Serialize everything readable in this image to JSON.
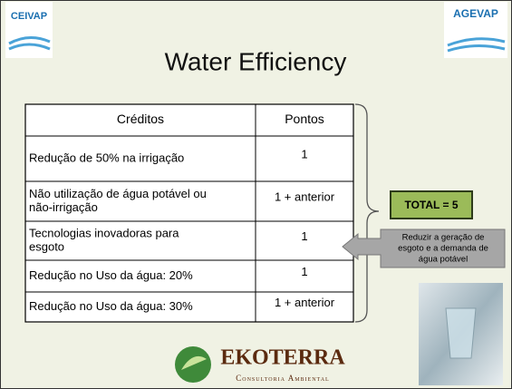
{
  "header": {
    "title": "Water Efficiency",
    "logo_left": "CEIVAP",
    "logo_right": "AGEVAP"
  },
  "table": {
    "columns": [
      "Créditos",
      "Pontos"
    ],
    "rows": [
      [
        [
          "Redução de 50% na irrigação"
        ],
        "1"
      ],
      [
        [
          "Não utilização de água potável ou",
          "não-irrigação"
        ],
        "1 + anterior"
      ],
      [
        [
          "Tecnologias inovadoras para",
          "esgoto"
        ],
        "1"
      ],
      [
        [
          "Redução no Uso da água: 20%"
        ],
        "1"
      ],
      [
        [
          "Redução no Uso da água: 30%"
        ],
        "1 + anterior"
      ]
    ]
  },
  "total": "TOTAL = 5",
  "callout": [
    "Reduzir a geração de",
    "esgoto e a demanda de",
    "água potável"
  ],
  "footer": {
    "brand": "EKOTERRA",
    "tagline": "Consultoria Ambiental"
  }
}
